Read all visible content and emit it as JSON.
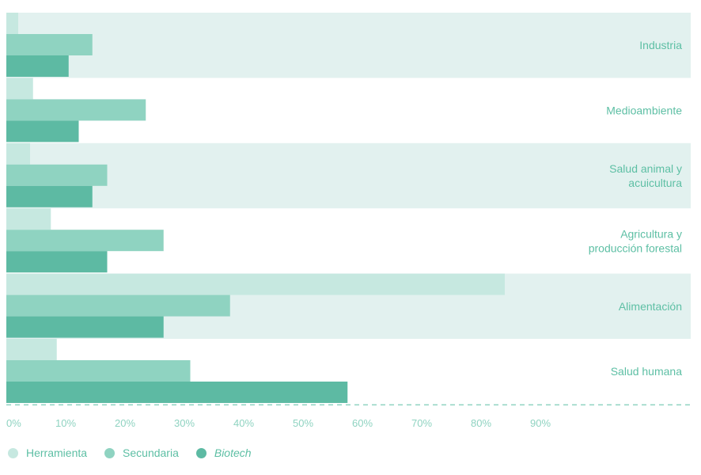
{
  "chart_data": {
    "type": "bar",
    "orientation": "horizontal",
    "categories": [
      "Industria",
      "Medioambiente",
      "Salud animal y acuicultura",
      "Agricultura y producción forestal",
      "Alimentación",
      "Salud humana"
    ],
    "category_lines": [
      [
        "Industria"
      ],
      [
        "Medioambiente"
      ],
      [
        "Salud animal y",
        "acuicultura"
      ],
      [
        "Agricultura y",
        "producción forestal"
      ],
      [
        "Alimentación"
      ],
      [
        "Salud humana"
      ]
    ],
    "series": [
      {
        "name": "Herramienta",
        "color": "#c6e8e0",
        "values": [
          2,
          4.5,
          4,
          7.5,
          84,
          8.5
        ]
      },
      {
        "name": "Secundaria",
        "color": "#8fd3c1",
        "values": [
          14.5,
          23.5,
          17,
          26.5,
          37.7,
          31
        ]
      },
      {
        "name": "Biotech",
        "color": "#5dbaa3",
        "values": [
          10.5,
          12.2,
          14.5,
          17,
          26.5,
          57.5
        ]
      }
    ],
    "x_ticks": [
      "0%",
      "10%",
      "20%",
      "30%",
      "40%",
      "50%",
      "60%",
      "70%",
      "80%",
      "90%"
    ],
    "xlim": [
      0,
      100
    ],
    "band_color": "#e2f1ef",
    "grid": false,
    "legend_position": "bottom-left"
  },
  "legend": {
    "items": [
      {
        "label": "Herramienta",
        "color": "#c6e8e0",
        "italic": false
      },
      {
        "label": "Secundaria",
        "color": "#8fd3c1",
        "italic": false
      },
      {
        "label": "Biotech",
        "color": "#5dbaa3",
        "italic": true
      }
    ]
  }
}
